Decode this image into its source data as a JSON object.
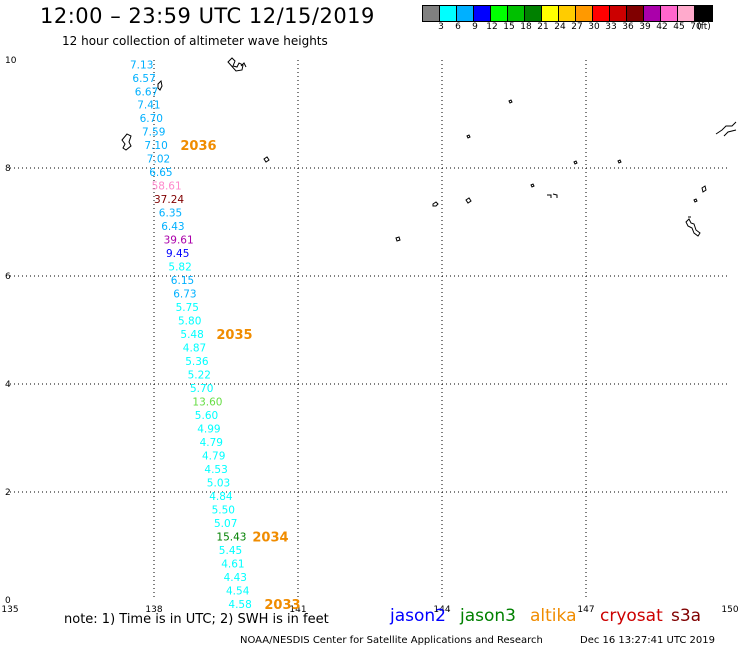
{
  "title": "12:00 – 23:59 UTC 12/15/2019",
  "subtitle": "12 hour collection of altimeter wave heights",
  "colorbar": {
    "unit_label": "(ft)",
    "labels": [
      "3",
      "6",
      "9",
      "12",
      "15",
      "18",
      "21",
      "24",
      "27",
      "30",
      "33",
      "36",
      "39",
      "42",
      "45",
      "70"
    ],
    "colors": [
      "#808080",
      "#00ffff",
      "#00b0ff",
      "#0000ff",
      "#00ff00",
      "#00c000",
      "#008000",
      "#ffff00",
      "#ffcc00",
      "#ff9900",
      "#ff0000",
      "#cc0000",
      "#800000",
      "#aa00aa",
      "#ff66cc",
      "#ffaacc",
      "#000000"
    ]
  },
  "axes": {
    "x_ticks": [
      "135",
      "138",
      "141",
      "144",
      "147",
      "150"
    ],
    "y_ticks": [
      "0",
      "2",
      "4",
      "6",
      "8",
      "10"
    ],
    "xlim": [
      135,
      150
    ],
    "ylim": [
      0,
      10
    ]
  },
  "wave_heights": [
    {
      "text": "7.13",
      "lat": 9.92,
      "lon": 137.5,
      "color": "#00b0ff"
    },
    {
      "text": "6.57",
      "lat": 9.67,
      "lon": 137.55,
      "color": "#00b0ff"
    },
    {
      "text": "6.67",
      "lat": 9.42,
      "lon": 137.6,
      "color": "#00b0ff"
    },
    {
      "text": "7.41",
      "lat": 9.18,
      "lon": 137.65,
      "color": "#00b0ff"
    },
    {
      "text": "6.70",
      "lat": 8.93,
      "lon": 137.7,
      "color": "#00b0ff"
    },
    {
      "text": "7.59",
      "lat": 8.68,
      "lon": 137.75,
      "color": "#00b0ff"
    },
    {
      "text": "7.10",
      "lat": 8.43,
      "lon": 137.8,
      "color": "#00b0ff"
    },
    {
      "text": "7.02",
      "lat": 8.18,
      "lon": 137.85,
      "color": "#00b0ff"
    },
    {
      "text": "6.65",
      "lat": 7.93,
      "lon": 137.9,
      "color": "#00b0ff"
    },
    {
      "text": "58.61",
      "lat": 7.68,
      "lon": 137.95,
      "color": "#ff88cc"
    },
    {
      "text": "37.24",
      "lat": 7.43,
      "lon": 138.0,
      "color": "#800000"
    },
    {
      "text": "6.35",
      "lat": 7.18,
      "lon": 138.1,
      "color": "#00b0ff"
    },
    {
      "text": "6.43",
      "lat": 6.93,
      "lon": 138.15,
      "color": "#00b0ff"
    },
    {
      "text": "39.61",
      "lat": 6.68,
      "lon": 138.2,
      "color": "#aa00aa"
    },
    {
      "text": "9.45",
      "lat": 6.43,
      "lon": 138.25,
      "color": "#0000ff"
    },
    {
      "text": "5.82",
      "lat": 6.18,
      "lon": 138.3,
      "color": "#00ffff"
    },
    {
      "text": "6.15",
      "lat": 5.93,
      "lon": 138.35,
      "color": "#00b0ff"
    },
    {
      "text": "6.73",
      "lat": 5.68,
      "lon": 138.4,
      "color": "#00b0ff"
    },
    {
      "text": "5.75",
      "lat": 5.43,
      "lon": 138.45,
      "color": "#00ffff"
    },
    {
      "text": "5.80",
      "lat": 5.18,
      "lon": 138.5,
      "color": "#00ffff"
    },
    {
      "text": "5.48",
      "lat": 4.93,
      "lon": 138.55,
      "color": "#00ffff"
    },
    {
      "text": "4.87",
      "lat": 4.68,
      "lon": 138.6,
      "color": "#00ffff"
    },
    {
      "text": "5.36",
      "lat": 4.43,
      "lon": 138.65,
      "color": "#00ffff"
    },
    {
      "text": "5.22",
      "lat": 4.18,
      "lon": 138.7,
      "color": "#00ffff"
    },
    {
      "text": "5.70",
      "lat": 3.93,
      "lon": 138.75,
      "color": "#00ffff"
    },
    {
      "text": "13.60",
      "lat": 3.68,
      "lon": 138.8,
      "color": "#66dd44"
    },
    {
      "text": "5.60",
      "lat": 3.43,
      "lon": 138.85,
      "color": "#00ffff"
    },
    {
      "text": "4.99",
      "lat": 3.18,
      "lon": 138.9,
      "color": "#00ffff"
    },
    {
      "text": "4.79",
      "lat": 2.93,
      "lon": 138.95,
      "color": "#00ffff"
    },
    {
      "text": "4.79",
      "lat": 2.68,
      "lon": 139.0,
      "color": "#00ffff"
    },
    {
      "text": "4.53",
      "lat": 2.43,
      "lon": 139.05,
      "color": "#00ffff"
    },
    {
      "text": "5.03",
      "lat": 2.18,
      "lon": 139.1,
      "color": "#00ffff"
    },
    {
      "text": "4.84",
      "lat": 1.93,
      "lon": 139.15,
      "color": "#00ffff"
    },
    {
      "text": "5.50",
      "lat": 1.68,
      "lon": 139.2,
      "color": "#00ffff"
    },
    {
      "text": "5.07",
      "lat": 1.43,
      "lon": 139.25,
      "color": "#00ffff"
    },
    {
      "text": "15.43",
      "lat": 1.18,
      "lon": 139.3,
      "color": "#008000"
    },
    {
      "text": "5.45",
      "lat": 0.93,
      "lon": 139.35,
      "color": "#00ffff"
    },
    {
      "text": "4.61",
      "lat": 0.68,
      "lon": 139.4,
      "color": "#00ffff"
    },
    {
      "text": "4.43",
      "lat": 0.43,
      "lon": 139.45,
      "color": "#00ffff"
    },
    {
      "text": "4.54",
      "lat": 0.18,
      "lon": 139.5,
      "color": "#00ffff"
    },
    {
      "text": "4.58",
      "lat": -0.07,
      "lon": 139.55,
      "color": "#00ffff"
    }
  ],
  "track_times": [
    {
      "text": "2036",
      "lat": 8.43,
      "lon": 138.55
    },
    {
      "text": "2035",
      "lat": 4.93,
      "lon": 139.3
    },
    {
      "text": "2034",
      "lat": 1.18,
      "lon": 140.05
    },
    {
      "text": "2033",
      "lat": -0.07,
      "lon": 140.3
    }
  ],
  "note": "note:  1) Time is in UTC;  2) SWH is in feet",
  "satellites": [
    {
      "name": "jason2",
      "color": "#0000ff"
    },
    {
      "name": "jason3",
      "color": "#008000"
    },
    {
      "name": "altika",
      "color": "#f08c00"
    },
    {
      "name": "cryosat",
      "color": "#cc0000"
    },
    {
      "name": "s3a",
      "color": "#800000"
    }
  ],
  "footer_org": "NOAA/NESDIS Center for Satellite Applications and Research",
  "footer_time": "Dec 16 13:27:41 UTC 2019"
}
